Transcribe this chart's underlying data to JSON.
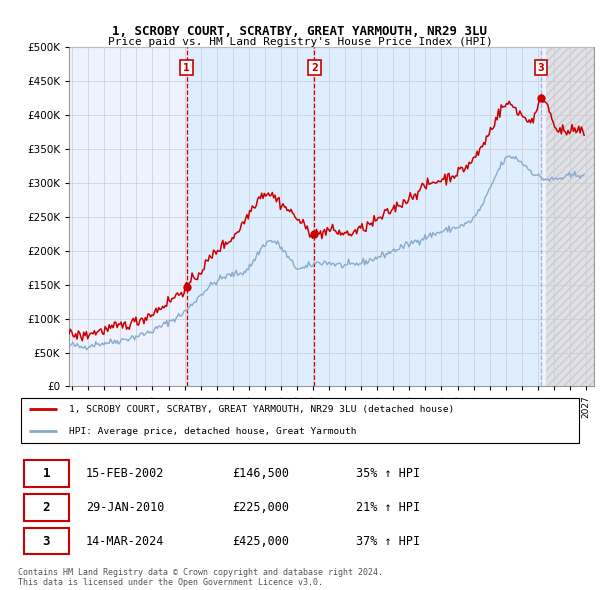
{
  "title": "1, SCROBY COURT, SCRATBY, GREAT YARMOUTH, NR29 3LU",
  "subtitle": "Price paid vs. HM Land Registry's House Price Index (HPI)",
  "ylim": [
    0,
    500000
  ],
  "yticks": [
    0,
    50000,
    100000,
    150000,
    200000,
    250000,
    300000,
    350000,
    400000,
    450000,
    500000
  ],
  "ytick_labels": [
    "£0",
    "£50K",
    "£100K",
    "£150K",
    "£200K",
    "£250K",
    "£300K",
    "£350K",
    "£400K",
    "£450K",
    "£500K"
  ],
  "xlim_start": 1994.8,
  "xlim_end": 2027.5,
  "xtick_years": [
    1995,
    1996,
    1997,
    1998,
    1999,
    2000,
    2001,
    2002,
    2003,
    2004,
    2005,
    2006,
    2007,
    2008,
    2009,
    2010,
    2011,
    2012,
    2013,
    2014,
    2015,
    2016,
    2017,
    2018,
    2019,
    2020,
    2021,
    2022,
    2023,
    2024,
    2025,
    2026,
    2027
  ],
  "sale_dates": [
    2002.12,
    2010.08,
    2024.21
  ],
  "sale_prices": [
    146500,
    225000,
    425000
  ],
  "sale_labels": [
    "1",
    "2",
    "3"
  ],
  "sale_line_colors": [
    "#cc0000",
    "#cc0000",
    "#aaaadd"
  ],
  "legend_line1": "1, SCROBY COURT, SCRATBY, GREAT YARMOUTH, NR29 3LU (detached house)",
  "legend_line2": "HPI: Average price, detached house, Great Yarmouth",
  "table_rows": [
    [
      "1",
      "15-FEB-2002",
      "£146,500",
      "35% ↑ HPI"
    ],
    [
      "2",
      "29-JAN-2010",
      "£225,000",
      "21% ↑ HPI"
    ],
    [
      "3",
      "14-MAR-2024",
      "£425,000",
      "37% ↑ HPI"
    ]
  ],
  "footer": "Contains HM Land Registry data © Crown copyright and database right 2024.\nThis data is licensed under the Open Government Licence v3.0.",
  "red_color": "#cc0000",
  "blue_color": "#88aacc",
  "shade_color": "#ddeeff",
  "grid_color": "#cccccc",
  "plot_bg": "#eef2ff",
  "hatch_start": 2024.5
}
